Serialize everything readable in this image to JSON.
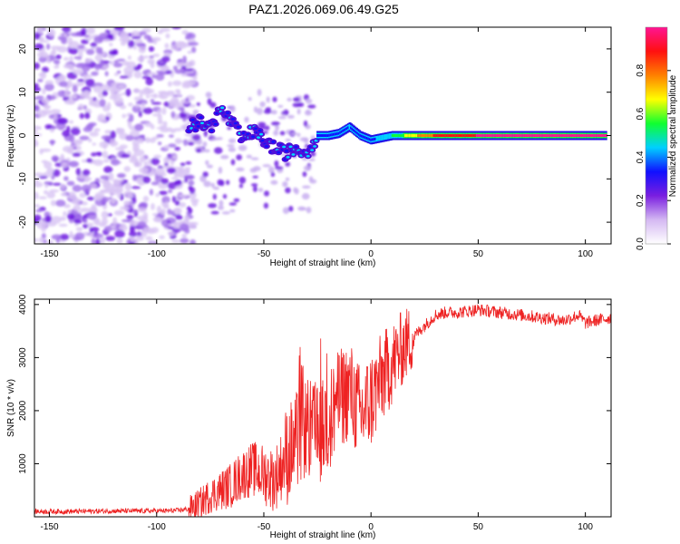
{
  "title": "PAZ1.2026.069.06.49.G25",
  "chart_data": [
    {
      "type": "heatmap",
      "xlabel": "Height of straight line (km)",
      "ylabel": "Frequency (Hz)",
      "xlim": [
        -157,
        112
      ],
      "ylim": [
        -25,
        25
      ],
      "xticks": [
        -150,
        -100,
        -50,
        0,
        50,
        100
      ],
      "yticks": [
        -20,
        -10,
        0,
        10,
        20
      ],
      "colorbar": {
        "label": "Normalized spectral amplitude",
        "range": [
          0,
          1
        ],
        "ticks": [
          "0.0",
          "0.2",
          "0.4",
          "0.6",
          "0.8"
        ],
        "ticks_values": [
          0,
          0.2,
          0.4,
          0.6,
          0.8
        ],
        "colors": [
          "#ffffff",
          "#d4b8f2",
          "#7a1ee0",
          "#1010ff",
          "#00d0ff",
          "#10ff30",
          "#ffff00",
          "#ff8000",
          "#ff1010",
          "#ff1493"
        ]
      },
      "ridge": [
        {
          "x": -85,
          "f": 2,
          "a": 0.25
        },
        {
          "x": -80,
          "f": 3,
          "a": 0.3
        },
        {
          "x": -75,
          "f": 2,
          "a": 0.3
        },
        {
          "x": -70,
          "f": 6,
          "a": 0.25
        },
        {
          "x": -65,
          "f": 3,
          "a": 0.3
        },
        {
          "x": -60,
          "f": -1,
          "a": 0.3
        },
        {
          "x": -55,
          "f": 1,
          "a": 0.25
        },
        {
          "x": -50,
          "f": -1,
          "a": 0.3
        },
        {
          "x": -45,
          "f": -3,
          "a": 0.3
        },
        {
          "x": -40,
          "f": -4,
          "a": 0.25
        },
        {
          "x": -35,
          "f": -3,
          "a": 0.3
        },
        {
          "x": -30,
          "f": -4,
          "a": 0.25
        },
        {
          "x": -25,
          "f": 0,
          "a": 0.3
        },
        {
          "x": -20,
          "f": 0,
          "a": 0.3
        },
        {
          "x": -15,
          "f": 0.5,
          "a": 0.3
        },
        {
          "x": -10,
          "f": 2,
          "a": 0.4
        },
        {
          "x": -5,
          "f": 0,
          "a": 0.3
        },
        {
          "x": 0,
          "f": -1,
          "a": 0.35
        },
        {
          "x": 10,
          "f": 0,
          "a": 0.5
        },
        {
          "x": 20,
          "f": 0,
          "a": 0.7
        },
        {
          "x": 30,
          "f": 0,
          "a": 0.85
        },
        {
          "x": 50,
          "f": 0,
          "a": 0.95
        },
        {
          "x": 70,
          "f": 0,
          "a": 0.95
        },
        {
          "x": 90,
          "f": 0,
          "a": 0.95
        },
        {
          "x": 110,
          "f": 0,
          "a": 0.95
        }
      ]
    },
    {
      "type": "line",
      "xlabel": "Height of straight line (km)",
      "ylabel": "SNR (10 * v/v)",
      "xlim": [
        -157,
        112
      ],
      "ylim": [
        0,
        4100
      ],
      "xticks": [
        -150,
        -100,
        -50,
        0,
        50,
        100
      ],
      "yticks": [
        1000,
        2000,
        3000,
        4000
      ],
      "color": "#ee2222",
      "x": [
        -157,
        -140,
        -120,
        -100,
        -90,
        -85,
        -80,
        -75,
        -70,
        -65,
        -60,
        -55,
        -50,
        -45,
        -40,
        -35,
        -30,
        -25,
        -20,
        -15,
        -10,
        -5,
        0,
        5,
        10,
        15,
        20,
        25,
        30,
        35,
        40,
        50,
        60,
        70,
        80,
        90,
        97,
        100,
        105,
        112
      ],
      "y": [
        100,
        100,
        110,
        110,
        120,
        150,
        250,
        400,
        500,
        600,
        800,
        900,
        800,
        700,
        1100,
        1400,
        1700,
        1500,
        1800,
        2200,
        2400,
        1900,
        2200,
        2600,
        2900,
        3200,
        3400,
        3600,
        3800,
        3850,
        3850,
        3900,
        3850,
        3800,
        3750,
        3700,
        3800,
        3650,
        3700,
        3750
      ]
    }
  ]
}
